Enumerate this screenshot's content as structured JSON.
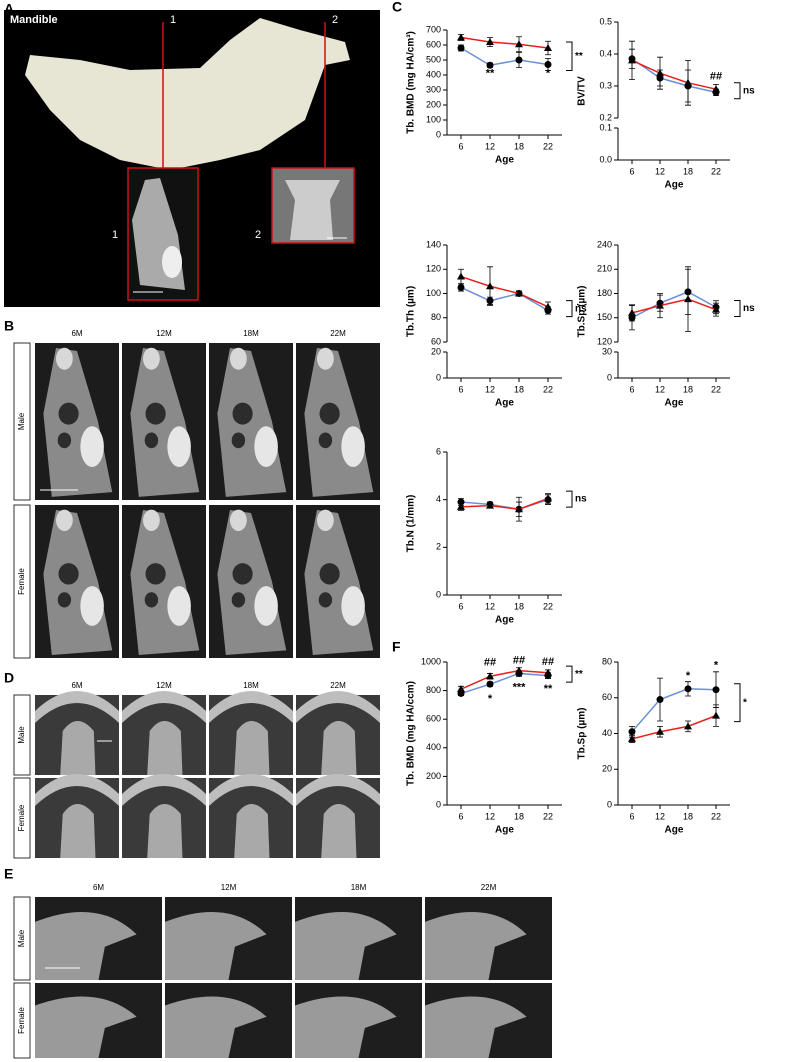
{
  "panels": {
    "A": {
      "label": "A",
      "title": "Mandible",
      "section_markers": [
        "1",
        "2"
      ],
      "inset_labels": [
        "1",
        "2"
      ]
    },
    "B": {
      "label": "B",
      "columns": [
        "6M",
        "12M",
        "18M",
        "22M"
      ],
      "rows": [
        "Male",
        "Female"
      ]
    },
    "C": {
      "label": "C"
    },
    "D": {
      "label": "D",
      "columns": [
        "6M",
        "12M",
        "18M",
        "22M"
      ],
      "rows": [
        "Male",
        "Female"
      ]
    },
    "E": {
      "label": "E",
      "columns": [
        "6M",
        "12M",
        "18M",
        "22M"
      ],
      "rows": [
        "Male",
        "Female"
      ]
    },
    "F": {
      "label": "F"
    }
  },
  "chart_data": [
    {
      "type": "line",
      "ylabel": "Tb. BMD (mg HA/cm³)",
      "xlabel": "Age",
      "categories": [
        "6",
        "12",
        "18",
        "22"
      ],
      "ylim": [
        0,
        700
      ],
      "yticks": [
        0,
        100,
        200,
        300,
        400,
        500,
        600,
        700
      ],
      "series": [
        {
          "color": "#6b8fd8",
          "marker": "circle",
          "values": [
            580,
            465,
            500,
            470
          ],
          "errors": [
            20,
            15,
            50,
            40
          ]
        },
        {
          "color": "#e8201a",
          "marker": "triangle",
          "values": [
            650,
            620,
            605,
            580
          ],
          "errors": [
            20,
            30,
            50,
            45
          ]
        }
      ],
      "annotations": [
        {
          "x": "12",
          "y": 410,
          "text": "**"
        },
        {
          "x": "22",
          "y": 410,
          "text": "*"
        }
      ],
      "bracket": "**"
    },
    {
      "type": "line",
      "ylabel": "BV/TV",
      "xlabel": "Age",
      "categories": [
        "6",
        "12",
        "18",
        "22"
      ],
      "ylim": [
        0.2,
        0.5
      ],
      "yticks": [
        0.2,
        0.3,
        0.4,
        0.5
      ],
      "lower_ylim": [
        0,
        0.1
      ],
      "lower_yticks": [
        {
          "value": 0,
          "label": "0.0"
        },
        0.1
      ],
      "series": [
        {
          "color": "#6b8fd8",
          "marker": "circle",
          "values": [
            0.385,
            0.325,
            0.3,
            0.28
          ],
          "errors": [
            0.03,
            0.025,
            0.05,
            0.01
          ]
        },
        {
          "color": "#e8201a",
          "marker": "triangle",
          "values": [
            0.38,
            0.34,
            0.31,
            0.29
          ],
          "errors": [
            0.06,
            0.05,
            0.07,
            0.015
          ]
        }
      ],
      "annotations": [
        {
          "x": "22",
          "y": 0.33,
          "text": "##"
        }
      ],
      "bracket": "ns"
    },
    {
      "type": "line",
      "ylabel": "Tb.Th (µm)",
      "xlabel": "Age",
      "categories": [
        "6",
        "12",
        "18",
        "22"
      ],
      "ylim": [
        60,
        140
      ],
      "yticks": [
        60,
        80,
        100,
        120,
        140
      ],
      "lower_ylim": [
        0,
        20
      ],
      "lower_yticks": [
        0,
        20
      ],
      "series": [
        {
          "color": "#6b8fd8",
          "marker": "circle",
          "values": [
            105,
            94,
            100,
            86
          ],
          "errors": [
            3,
            3,
            2,
            3
          ]
        },
        {
          "color": "#e8201a",
          "marker": "triangle",
          "values": [
            114,
            106,
            100,
            89
          ],
          "errors": [
            6,
            16,
            2,
            4
          ]
        }
      ],
      "annotations": [],
      "bracket": "ns"
    },
    {
      "type": "line",
      "ylabel": "Tb.Sp (µm)",
      "xlabel": "Age",
      "categories": [
        "6",
        "12",
        "18",
        "22"
      ],
      "ylim": [
        120,
        240
      ],
      "yticks": [
        120,
        150,
        180,
        210,
        240
      ],
      "lower_ylim": [
        0,
        30
      ],
      "lower_yticks": [
        0,
        30
      ],
      "series": [
        {
          "color": "#6b8fd8",
          "marker": "circle",
          "values": [
            150,
            168,
            182,
            163
          ],
          "errors": [
            15,
            10,
            28,
            8
          ]
        },
        {
          "color": "#e8201a",
          "marker": "triangle",
          "values": [
            156,
            165,
            173,
            160
          ],
          "errors": [
            10,
            15,
            40,
            8
          ]
        }
      ],
      "annotations": [],
      "bracket": "ns"
    },
    {
      "type": "line",
      "ylabel": "Tb.N (1/mm)",
      "xlabel": "Age",
      "categories": [
        "6",
        "12",
        "18",
        "22"
      ],
      "ylim": [
        0,
        6
      ],
      "yticks": [
        0,
        2,
        4,
        6
      ],
      "series": [
        {
          "color": "#6b8fd8",
          "marker": "circle",
          "values": [
            3.9,
            3.8,
            3.6,
            4.0
          ],
          "errors": [
            0.15,
            0.1,
            0.5,
            0.2
          ]
        },
        {
          "color": "#e8201a",
          "marker": "triangle",
          "values": [
            3.7,
            3.75,
            3.6,
            4.05
          ],
          "errors": [
            0.15,
            0.1,
            0.3,
            0.2
          ]
        }
      ],
      "annotations": [],
      "bracket": "ns"
    },
    {
      "type": "line",
      "ylabel": "Tb. BMD (mg HA/ccm)",
      "xlabel": "Age",
      "categories": [
        "6",
        "12",
        "18",
        "22"
      ],
      "ylim": [
        0,
        1000
      ],
      "yticks": [
        0,
        200,
        400,
        600,
        800,
        1000
      ],
      "series": [
        {
          "color": "#6b8fd8",
          "marker": "circle",
          "values": [
            780,
            845,
            920,
            905
          ],
          "errors": [
            15,
            15,
            20,
            20
          ]
        },
        {
          "color": "#e8201a",
          "marker": "triangle",
          "values": [
            810,
            900,
            940,
            925
          ],
          "errors": [
            20,
            20,
            20,
            20
          ]
        }
      ],
      "annotations": [
        {
          "x": "12",
          "y": 995,
          "text": "##"
        },
        {
          "x": "18",
          "y": 1010,
          "text": "##"
        },
        {
          "x": "22",
          "y": 1000,
          "text": "##"
        },
        {
          "x": "12",
          "y": 740,
          "text": "*"
        },
        {
          "x": "18",
          "y": 820,
          "text": "***"
        },
        {
          "x": "22",
          "y": 810,
          "text": "**"
        }
      ],
      "bracket": "**"
    },
    {
      "type": "line",
      "ylabel": "Tb.Sp (µm)",
      "xlabel": "Age",
      "categories": [
        "6",
        "12",
        "18",
        "22"
      ],
      "ylim": [
        0,
        80
      ],
      "yticks": [
        0,
        20,
        40,
        60,
        80
      ],
      "series": [
        {
          "color": "#6b8fd8",
          "marker": "circle",
          "values": [
            41,
            59,
            65,
            64.5
          ],
          "errors": [
            3,
            12,
            4,
            10
          ]
        },
        {
          "color": "#e8201a",
          "marker": "triangle",
          "values": [
            37,
            41,
            44,
            50
          ],
          "errors": [
            2,
            3,
            3,
            6
          ]
        }
      ],
      "annotations": [
        {
          "x": "18",
          "y": 72,
          "text": "*"
        },
        {
          "x": "22",
          "y": 78,
          "text": "*"
        }
      ],
      "bracket": "*"
    }
  ]
}
